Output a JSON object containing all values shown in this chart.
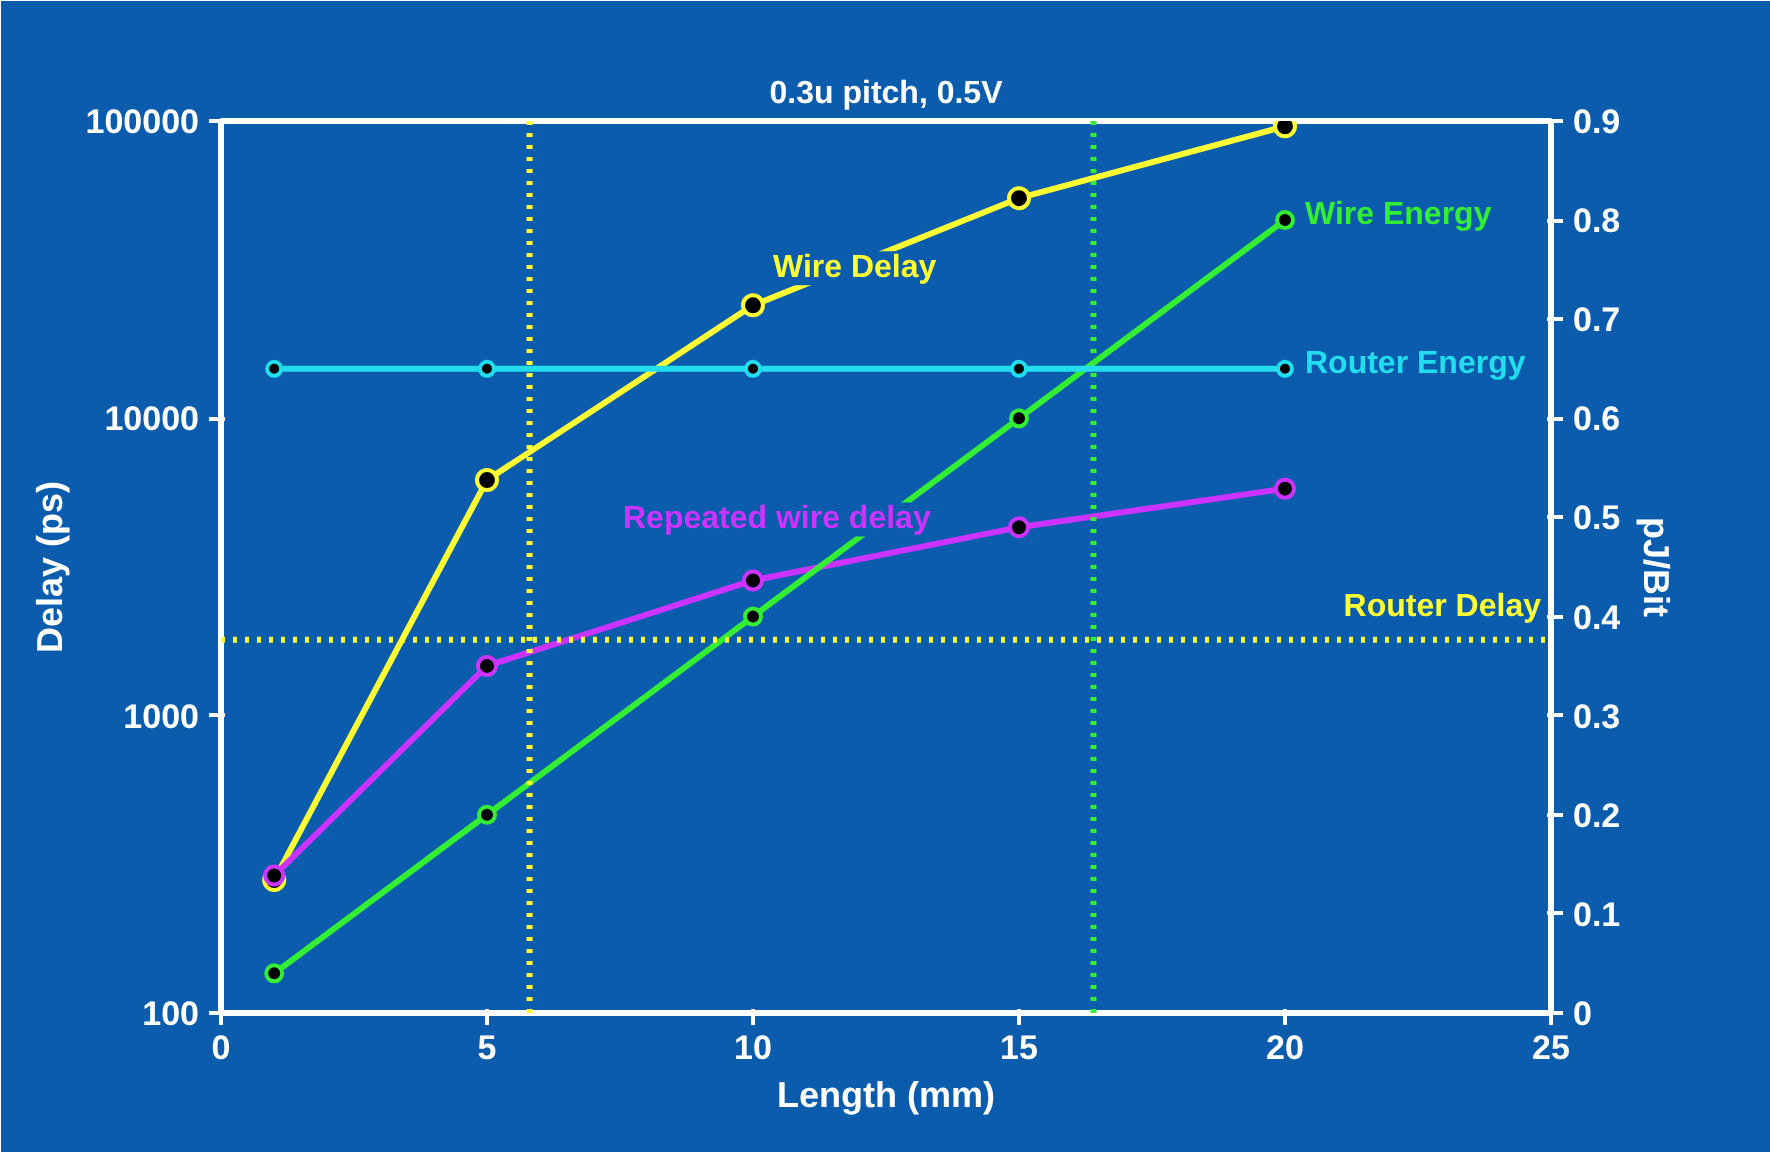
{
  "chart_data": {
    "type": "line",
    "title": "0.3u pitch, 0.5V",
    "xlabel": "Length (mm)",
    "ylabel": "Delay (ps)",
    "y2label": "pJ/Bit",
    "x": [
      1,
      5,
      10,
      15,
      20
    ],
    "series": [
      {
        "name": "Wire Delay",
        "color": "#ffff33",
        "values": [
          280,
          6200,
          24000,
          55000,
          96000
        ]
      },
      {
        "name": "Repeated wire delay",
        "color": "#cc33ff",
        "values": [
          290,
          1470,
          2850,
          4300,
          5800
        ]
      },
      {
        "name": "Wire Energy",
        "color": "#33ee33",
        "axis": "y2",
        "values": [
          0.04,
          0.2,
          0.4,
          0.6,
          0.8
        ]
      },
      {
        "name": "Router Energy",
        "color": "#22ddee",
        "axis": "y2",
        "values": [
          0.65,
          0.65,
          0.65,
          0.65,
          0.65
        ]
      }
    ],
    "ref_lines": [
      {
        "axis": "y",
        "value": 1800,
        "label": "Router Delay",
        "color": "#ffff33",
        "line_style": "dotted"
      },
      {
        "axis": "x",
        "value": 5.8,
        "color": "#ffff33",
        "line_style": "dotted"
      },
      {
        "axis": "x",
        "value": 16.4,
        "color": "#33ee33",
        "line_style": "dotted"
      }
    ],
    "log": "y",
    "marker": "circle",
    "grid": false,
    "legend": false,
    "xlim": [
      0,
      25
    ],
    "xticks": [
      0,
      5,
      10,
      15,
      20,
      25
    ],
    "ylim": [
      100,
      100000
    ],
    "yticks": [
      100,
      1000,
      10000,
      100000
    ],
    "y2lim": [
      0,
      0.9
    ],
    "y2ticks": [
      0,
      0.1,
      0.2,
      0.3,
      0.4,
      0.5,
      0.6,
      0.7,
      0.8,
      0.9
    ]
  }
}
